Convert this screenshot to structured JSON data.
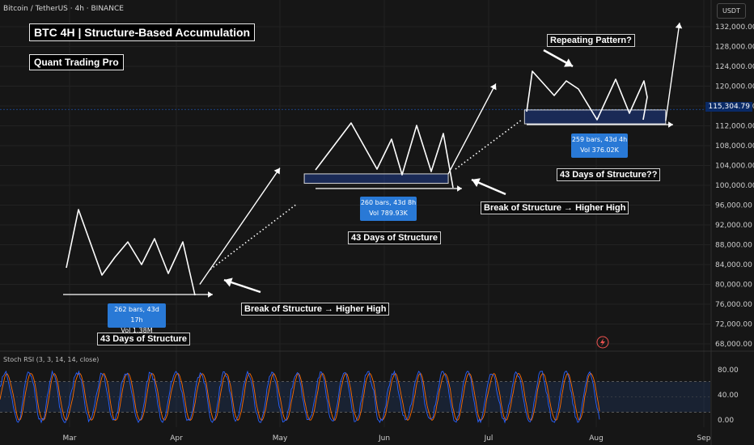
{
  "header": {
    "symbol": "Bitcoin / TetherUS · 4h · BINANCE",
    "currency": "USDT"
  },
  "titles": {
    "main": "BTC 4H | Structure-Based Accumulation",
    "author": "Quant Trading Pro"
  },
  "annotations": {
    "repeating": "Repeating Pattern?",
    "bos1": "Break of Structure → Higher High",
    "bos2": "Break of Structure → Higher High",
    "days1": "43 Days of Structure",
    "days2": "43 Days of Structure",
    "days3": "43 Days of Structure??"
  },
  "stats": [
    {
      "bars": "262 bars, 43d 17h",
      "vol": "Vol 1.38M"
    },
    {
      "bars": "260 bars, 43d 8h",
      "vol": "Vol 789.93K"
    },
    {
      "bars": "259 bars, 43d 4h",
      "vol": "Vol 376.02K"
    }
  ],
  "indicator": {
    "label": "Stoch RSI (3, 3, 14, 14, close)",
    "ticks": [
      "80.00",
      "40.00",
      "0.00"
    ]
  },
  "current_price": "115,304.79",
  "colors": {
    "background": "#161616",
    "up": "#26a69a",
    "down": "#ef5350",
    "zone": "#2962ff",
    "stoch_k": "#2962ff",
    "stoch_d": "#ff6d00",
    "price_tag": "#0a2a66"
  },
  "chart_data": {
    "type": "candlestick",
    "title": "BTC 4H | Structure-Based Accumulation",
    "y_axis_ticks": [
      "132,000.00",
      "128,000.00",
      "124,000.00",
      "120,000.00",
      "116,000.00",
      "112,000.00",
      "108,000.00",
      "104,000.00",
      "100,000.00",
      "96,000.00",
      "92,000.00",
      "88,000.00",
      "84,000.00",
      "80,000.00",
      "76,000.00",
      "72,000.00",
      "68,000.00"
    ],
    "x_axis_ticks": [
      "Mar",
      "Apr",
      "May",
      "Jun",
      "Jul",
      "Aug",
      "Sep"
    ],
    "ylim": [
      66000,
      135000
    ],
    "price_path": [
      {
        "x": "Feb 01",
        "y": 98000
      },
      {
        "x": "Feb 12",
        "y": 97000
      },
      {
        "x": "Feb 24",
        "y": 91000
      },
      {
        "x": "Feb 28",
        "y": 82000
      },
      {
        "x": "Mar 03",
        "y": 94500
      },
      {
        "x": "Mar 09",
        "y": 82000
      },
      {
        "x": "Mar 18",
        "y": 84000
      },
      {
        "x": "Mar 25",
        "y": 88000
      },
      {
        "x": "Apr 01",
        "y": 85000
      },
      {
        "x": "Apr 07",
        "y": 76000
      },
      {
        "x": "Apr 10",
        "y": 79000
      },
      {
        "x": "Apr 22",
        "y": 88000
      },
      {
        "x": "Apr 30",
        "y": 94000
      },
      {
        "x": "May 10",
        "y": 103000
      },
      {
        "x": "May 22",
        "y": 111000
      },
      {
        "x": "May 31",
        "y": 104000
      },
      {
        "x": "Jun 10",
        "y": 109000
      },
      {
        "x": "Jun 22",
        "y": 100000
      },
      {
        "x": "Jun 30",
        "y": 107000
      },
      {
        "x": "Jul 09",
        "y": 112000
      },
      {
        "x": "Jul 14",
        "y": 122800
      },
      {
        "x": "Jul 21",
        "y": 118000
      },
      {
        "x": "Jul 28",
        "y": 119000
      },
      {
        "x": "Aug 01",
        "y": 113000
      },
      {
        "x": "Aug 02",
        "y": 115305
      }
    ],
    "zones": [
      {
        "from": "Feb 28",
        "to": "Apr 10",
        "low": 80000,
        "high": 81500
      },
      {
        "from": "May 08",
        "to": "Jun 20",
        "low": 100400,
        "high": 102300
      },
      {
        "from": "Jul 11",
        "to": "Aug 21",
        "low": 112400,
        "high": 115200
      }
    ],
    "projections": [
      {
        "points": [
          [
            "Apr 08",
            80000
          ],
          [
            "May 01",
            103500
          ]
        ]
      },
      {
        "points": [
          [
            "Jun 20",
            102300
          ],
          [
            "Jul 03",
            120500
          ]
        ]
      },
      {
        "points": [
          [
            "Aug 21",
            113000
          ],
          [
            "Aug 25",
            132800
          ]
        ]
      }
    ],
    "indicator": {
      "name": "Stoch RSI (3, 3, 14, 14, close)",
      "ylim": [
        0,
        100
      ],
      "levels": [
        80,
        20
      ]
    }
  }
}
